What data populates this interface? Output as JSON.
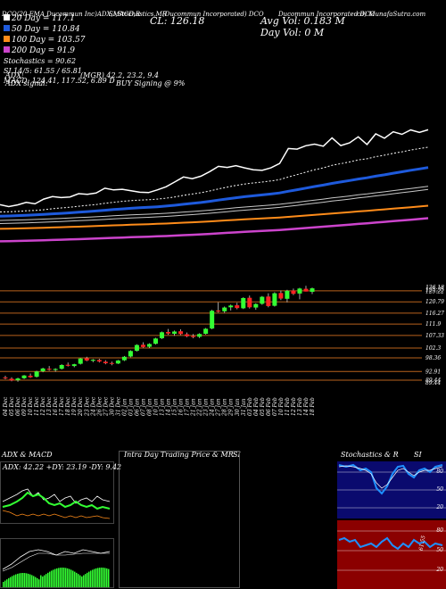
{
  "header": {
    "line1": "DCO 2500 EMA (Ducommun Incorporated) chart reference",
    "line1_parts": [
      "DCO(20 EMA",
      "Ducommun Inc)ADX,MACD,R",
      "SI,Stochastics,MR",
      "(Ducommun Incorporated) DCO",
      "Ducommun Incorporated DCO",
      "cd) MunafaSutra.com"
    ],
    "close": "CL: 126.18",
    "avg_vol": "Avg Vol: 0.183  M",
    "day_vol": "Day Vol: 0   M",
    "legend": {
      "ema20": "20 Day = 117.1",
      "ema50": "50 Day = 110.84",
      "ema100": "100 Day = 103.57",
      "ema200": "200 Day = 91.9",
      "stoch": "Stochastics = 90.62",
      "rsi": "SI 14/5: 61.55 / 65.81",
      "macd": "MACD: 124.41, 117.52, 6.89 D",
      "adx": "ADX:",
      "adx_val": "(MGR) 42.2, 23.2, 9.4",
      "signal_label": "ADX  signal:",
      "signal_val": "BUY Signing @ 9%"
    }
  },
  "colors": {
    "ema20": "#ffffff",
    "ema50": "#1e5adc",
    "ema100": "#c8c8c8",
    "ema200": "#ff8c1a",
    "ema_extra": "#cc44cc",
    "up": "#33ff33",
    "down": "#ff2222",
    "level": "#b8621c"
  },
  "price_axis": {
    "labels": [
      "126.18",
      "125.35",
      "125.22",
      "120.79",
      "116.27",
      "111.9",
      "107.33",
      "102.3",
      "98.36",
      "92.91",
      "89.44",
      "89.44"
    ]
  },
  "dates": [
    "04 Dec",
    "05 Dec",
    "06 Dec",
    "09 Dec",
    "10 Dec",
    "11 Dec",
    "12 Dec",
    "13 Dec",
    "16 Dec",
    "17 Dec",
    "18 Dec",
    "19 Dec",
    "20 Dec",
    "23 Dec",
    "24 Dec",
    "26 Dec",
    "27 Dec",
    "30 Dec",
    "31 Dec",
    "02 Jan",
    "03 Jan",
    "06 Jan",
    "07 Jan",
    "08 Jan",
    "10 Jan",
    "13 Jan",
    "14 Jan",
    "15 Jan",
    "16 Jan",
    "17 Jan",
    "21 Jan",
    "22 Jan",
    "23 Jan",
    "24 Jan",
    "27 Jan",
    "28 Jan",
    "29 Jan",
    "30 Jan",
    "31 Jan",
    "03 Feb",
    "04 Feb",
    "05 Feb",
    "06 Feb",
    "07 Feb",
    "10 Feb",
    "11 Feb",
    "12 Feb",
    "13 Feb",
    "14 Feb",
    "18 Feb"
  ],
  "panels": {
    "adx_title": "ADX  & MACD",
    "adx_values": "ADX: 42.22  +DY: 23.19  -DY: 9.42",
    "intraday_title": "Intra Day Trading Price  & MR",
    "intraday_si": "SI",
    "stoch_title": "Stochastics & R",
    "stoch_si": "SI",
    "stoch_labels": [
      "80",
      "50",
      "20"
    ],
    "rsi_labels": [
      "80",
      "50",
      "20"
    ],
    "rsi_value_label": "61.55"
  },
  "chart_data": {
    "type": "candlestick",
    "title": "",
    "categories": [
      "04 Dec",
      "05 Dec",
      "06 Dec",
      "09 Dec",
      "10 Dec",
      "11 Dec",
      "12 Dec",
      "13 Dec",
      "16 Dec",
      "17 Dec",
      "18 Dec",
      "19 Dec",
      "20 Dec",
      "23 Dec",
      "24 Dec",
      "26 Dec",
      "27 Dec",
      "30 Dec",
      "31 Dec",
      "02 Jan",
      "03 Jan",
      "06 Jan",
      "07 Jan",
      "08 Jan",
      "10 Jan",
      "13 Jan",
      "14 Jan",
      "15 Jan",
      "16 Jan",
      "17 Jan",
      "21 Jan",
      "22 Jan",
      "23 Jan",
      "24 Jan",
      "27 Jan",
      "28 Jan",
      "29 Jan",
      "30 Jan",
      "31 Jan",
      "03 Feb",
      "04 Feb",
      "05 Feb",
      "06 Feb",
      "07 Feb",
      "10 Feb",
      "11 Feb",
      "12 Feb",
      "13 Feb",
      "14 Feb",
      "18 Feb"
    ],
    "candles": [
      {
        "o": 90.5,
        "h": 91.2,
        "l": 89.8,
        "c": 90.2
      },
      {
        "o": 90.0,
        "h": 90.6,
        "l": 89.0,
        "c": 89.3
      },
      {
        "o": 89.4,
        "h": 90.4,
        "l": 88.8,
        "c": 90.1
      },
      {
        "o": 90.2,
        "h": 91.5,
        "l": 89.9,
        "c": 91.3
      },
      {
        "o": 91.2,
        "h": 92.1,
        "l": 90.3,
        "c": 90.6
      },
      {
        "o": 90.8,
        "h": 93.2,
        "l": 90.5,
        "c": 92.9
      },
      {
        "o": 93.0,
        "h": 94.4,
        "l": 92.6,
        "c": 94.1
      },
      {
        "o": 94.0,
        "h": 95.1,
        "l": 93.2,
        "c": 93.6
      },
      {
        "o": 93.5,
        "h": 94.2,
        "l": 92.8,
        "c": 93.9
      },
      {
        "o": 94.0,
        "h": 95.8,
        "l": 93.7,
        "c": 95.5
      },
      {
        "o": 95.6,
        "h": 96.5,
        "l": 94.9,
        "c": 95.2
      },
      {
        "o": 95.1,
        "h": 96.0,
        "l": 94.6,
        "c": 95.8
      },
      {
        "o": 96.0,
        "h": 98.3,
        "l": 95.7,
        "c": 98.1
      },
      {
        "o": 98.2,
        "h": 98.8,
        "l": 97.0,
        "c": 97.3
      },
      {
        "o": 97.2,
        "h": 97.9,
        "l": 96.6,
        "c": 97.6
      },
      {
        "o": 97.5,
        "h": 98.0,
        "l": 96.5,
        "c": 96.9
      },
      {
        "o": 96.8,
        "h": 97.4,
        "l": 95.8,
        "c": 96.2
      },
      {
        "o": 96.3,
        "h": 96.9,
        "l": 95.4,
        "c": 96.0
      },
      {
        "o": 96.1,
        "h": 97.5,
        "l": 95.9,
        "c": 97.3
      },
      {
        "o": 97.4,
        "h": 99.1,
        "l": 97.1,
        "c": 98.8
      },
      {
        "o": 98.9,
        "h": 101.4,
        "l": 98.6,
        "c": 101.1
      },
      {
        "o": 101.2,
        "h": 103.8,
        "l": 100.9,
        "c": 103.5
      },
      {
        "o": 103.6,
        "h": 104.6,
        "l": 102.4,
        "c": 102.7
      },
      {
        "o": 102.8,
        "h": 104.2,
        "l": 102.3,
        "c": 103.9
      },
      {
        "o": 104.0,
        "h": 106.4,
        "l": 103.7,
        "c": 106.1
      },
      {
        "o": 106.2,
        "h": 108.9,
        "l": 105.9,
        "c": 108.6
      },
      {
        "o": 108.7,
        "h": 109.9,
        "l": 107.6,
        "c": 108.1
      },
      {
        "o": 108.0,
        "h": 109.3,
        "l": 107.2,
        "c": 108.9
      },
      {
        "o": 109.0,
        "h": 109.8,
        "l": 107.5,
        "c": 107.9
      },
      {
        "o": 107.8,
        "h": 108.5,
        "l": 106.6,
        "c": 107.0
      },
      {
        "o": 107.1,
        "h": 107.9,
        "l": 106.2,
        "c": 106.7
      },
      {
        "o": 106.8,
        "h": 108.2,
        "l": 106.3,
        "c": 107.9
      },
      {
        "o": 108.0,
        "h": 110.3,
        "l": 107.7,
        "c": 110.0
      },
      {
        "o": 110.1,
        "h": 117.6,
        "l": 109.8,
        "c": 117.2
      },
      {
        "o": 117.3,
        "h": 120.6,
        "l": 116.5,
        "c": 116.9
      },
      {
        "o": 117.0,
        "h": 118.9,
        "l": 116.4,
        "c": 118.5
      },
      {
        "o": 118.6,
        "h": 119.7,
        "l": 117.3,
        "c": 119.3
      },
      {
        "o": 119.4,
        "h": 120.4,
        "l": 117.8,
        "c": 118.3
      },
      {
        "o": 118.2,
        "h": 122.6,
        "l": 117.9,
        "c": 122.3
      },
      {
        "o": 122.4,
        "h": 123.3,
        "l": 118.1,
        "c": 118.6
      },
      {
        "o": 118.5,
        "h": 120.2,
        "l": 117.6,
        "c": 119.9
      },
      {
        "o": 120.0,
        "h": 123.1,
        "l": 119.6,
        "c": 122.8
      },
      {
        "o": 122.9,
        "h": 124.2,
        "l": 118.6,
        "c": 119.1
      },
      {
        "o": 119.2,
        "h": 124.6,
        "l": 118.9,
        "c": 124.2
      },
      {
        "o": 124.3,
        "h": 125.3,
        "l": 121.5,
        "c": 122.1
      },
      {
        "o": 122.0,
        "h": 125.6,
        "l": 120.6,
        "c": 125.2
      },
      {
        "o": 125.3,
        "h": 126.1,
        "l": 123.5,
        "c": 124.0
      },
      {
        "o": 124.1,
        "h": 126.4,
        "l": 121.8,
        "c": 126.1
      },
      {
        "o": 126.0,
        "h": 127.2,
        "l": 124.9,
        "c": 124.9
      },
      {
        "o": 124.8,
        "h": 126.5,
        "l": 123.9,
        "c": 126.18
      }
    ],
    "ylim": [
      88,
      128
    ]
  }
}
